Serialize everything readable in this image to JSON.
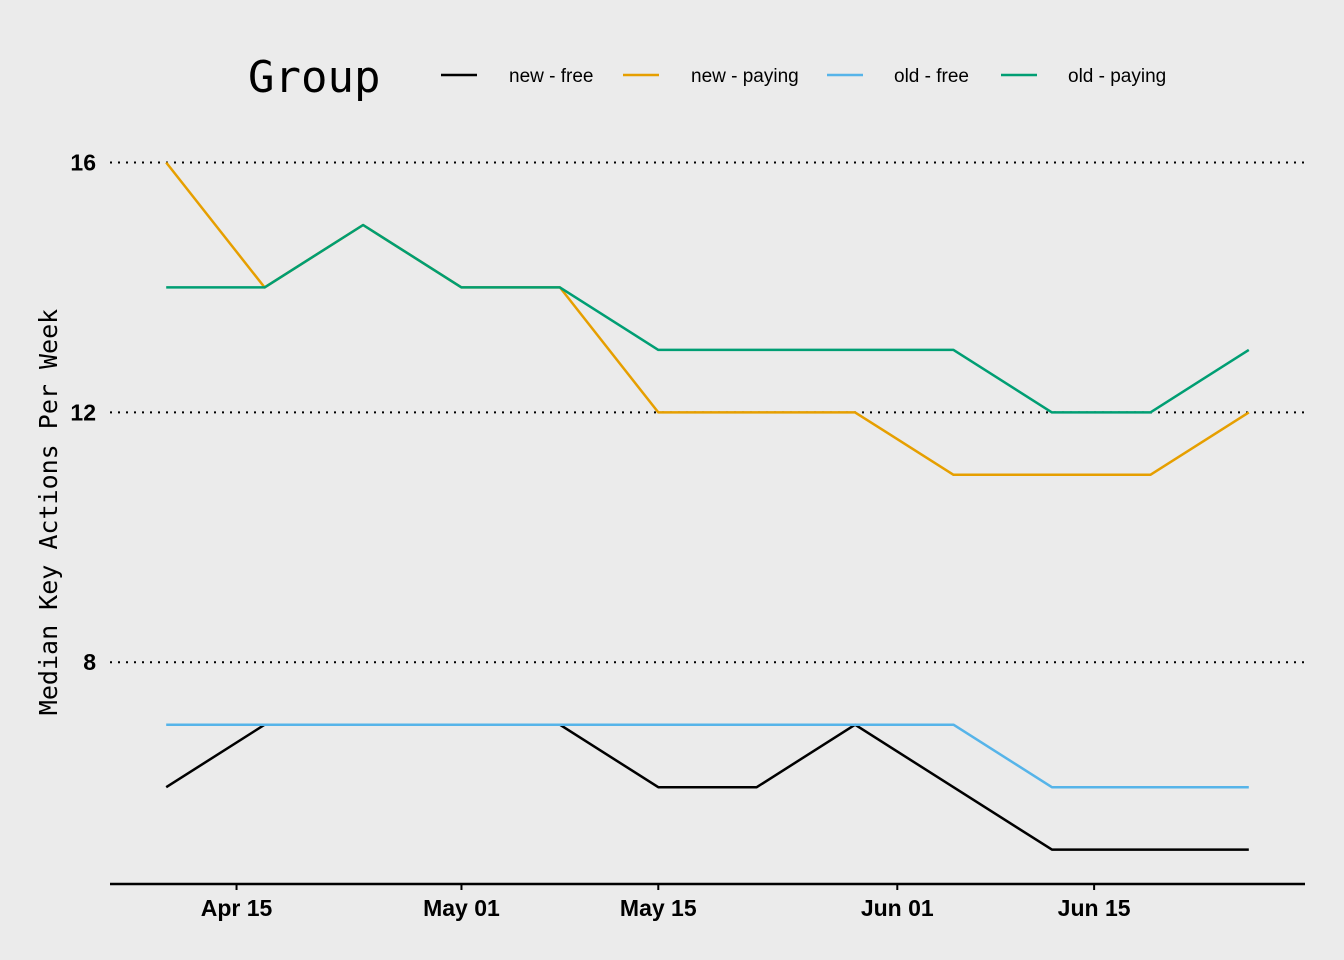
{
  "chart_data": {
    "type": "line",
    "title": "",
    "xlabel": "",
    "ylabel": "Median Key Actions Per Week",
    "legend": {
      "title": "Group",
      "placement": "top"
    },
    "grid": {
      "horizontal": true,
      "vertical": false,
      "style": "dotted"
    },
    "x": [
      "2020-04-10",
      "2020-04-17",
      "2020-04-24",
      "2020-05-01",
      "2020-05-08",
      "2020-05-15",
      "2020-05-22",
      "2020-05-29",
      "2020-06-05",
      "2020-06-12",
      "2020-06-19",
      "2020-06-26"
    ],
    "x_ticks": [
      {
        "date": "2020-04-15",
        "label": "Apr 15"
      },
      {
        "date": "2020-05-01",
        "label": "May 01"
      },
      {
        "date": "2020-05-15",
        "label": "May 15"
      },
      {
        "date": "2020-06-01",
        "label": "Jun 01"
      },
      {
        "date": "2020-06-15",
        "label": "Jun 15"
      }
    ],
    "xlim": [
      "2020-04-06",
      "2020-06-30"
    ],
    "y_ticks": [
      8,
      12,
      16
    ],
    "ylim": [
      4.45,
      16.2
    ],
    "series": [
      {
        "name": "new - free",
        "color": "#000000",
        "values": [
          6,
          7,
          7,
          7,
          7,
          6,
          6,
          7,
          6,
          5,
          5,
          5
        ]
      },
      {
        "name": "new - paying",
        "color": "#E69F00",
        "values": [
          16,
          14,
          15,
          14,
          14,
          12,
          12,
          12,
          11,
          11,
          11,
          12
        ]
      },
      {
        "name": "old - free",
        "color": "#56B4E9",
        "values": [
          7,
          7,
          7,
          7,
          7,
          7,
          7,
          7,
          7,
          6,
          6,
          6
        ]
      },
      {
        "name": "old - paying",
        "color": "#009E73",
        "values": [
          14,
          14,
          15,
          14,
          14,
          13,
          13,
          13,
          13,
          12,
          12,
          13
        ]
      }
    ]
  }
}
